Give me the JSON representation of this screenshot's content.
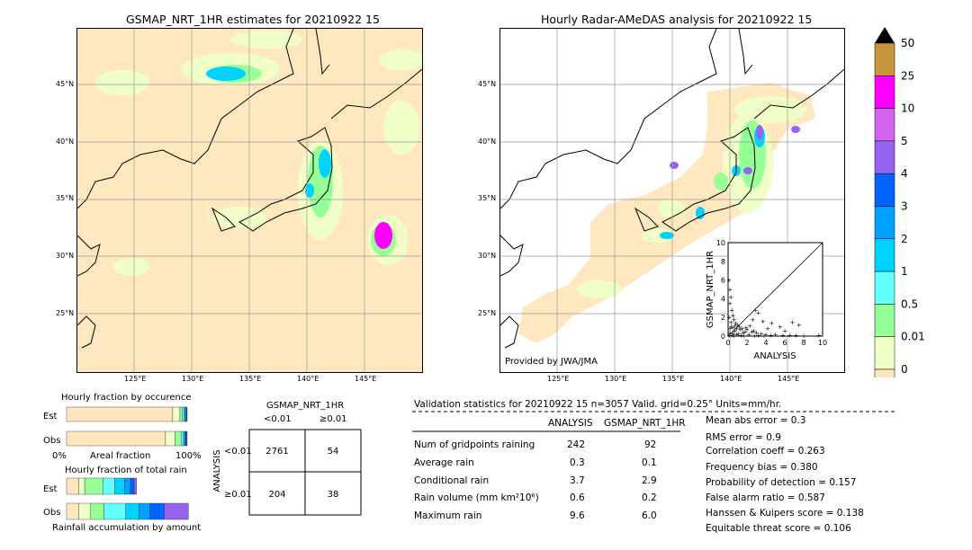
{
  "left_map": {
    "title": "GSMAP_NRT_1HR estimates for 20210922 15",
    "lat_ticks": [
      "45°N",
      "40°N",
      "35°N",
      "30°N",
      "25°N"
    ],
    "lon_ticks": [
      "125°E",
      "130°E",
      "135°E",
      "140°E",
      "145°E"
    ]
  },
  "right_map": {
    "title": "Hourly Radar-AMeDAS analysis for 20210922 15",
    "lat_ticks": [
      "45°N",
      "40°N",
      "35°N",
      "30°N",
      "25°N"
    ],
    "lon_ticks": [
      "125°E",
      "130°E",
      "135°E",
      "140°E",
      "145°E"
    ],
    "credit": "Provided by JWA/JMA"
  },
  "colorbar": {
    "labels": [
      "50",
      "25",
      "10",
      "5",
      "4",
      "3",
      "2",
      "1",
      "0.5",
      "0.01",
      "0"
    ],
    "colors": [
      "#c8963c",
      "#ff00ff",
      "#d264f0",
      "#9664f0",
      "#0064ff",
      "#00a0ff",
      "#00d2ff",
      "#64ffff",
      "#96ff96",
      "#f0ffc8",
      "#ffe6be"
    ]
  },
  "chart_data": [
    {
      "type": "scatter",
      "title": "",
      "xlabel": "ANALYSIS",
      "ylabel": "GSMAP_NRT_1HR",
      "xlim": [
        0,
        10
      ],
      "ylim": [
        0,
        10
      ],
      "x_ticks": [
        "0",
        "2",
        "4",
        "6",
        "8",
        "10"
      ],
      "y_ticks": [
        "0",
        "2",
        "4",
        "6",
        "8",
        "10"
      ],
      "points": [
        [
          0.1,
          6.0
        ],
        [
          0.2,
          5.0
        ],
        [
          0.3,
          4.2
        ],
        [
          0.2,
          3.5
        ],
        [
          0.4,
          2.8
        ],
        [
          0.5,
          2.2
        ],
        [
          0.1,
          2.0
        ],
        [
          0.6,
          1.8
        ],
        [
          0.3,
          1.5
        ],
        [
          0.8,
          1.4
        ],
        [
          1.0,
          1.2
        ],
        [
          1.2,
          1.0
        ],
        [
          0.5,
          0.9
        ],
        [
          1.5,
          0.8
        ],
        [
          2.0,
          0.7
        ],
        [
          0.7,
          0.6
        ],
        [
          1.8,
          0.5
        ],
        [
          2.5,
          0.5
        ],
        [
          3.0,
          0.4
        ],
        [
          0.2,
          0.4
        ],
        [
          1.1,
          0.3
        ],
        [
          3.5,
          0.3
        ],
        [
          4.0,
          0.2
        ],
        [
          0.9,
          0.2
        ],
        [
          2.2,
          0.2
        ],
        [
          5.0,
          0.2
        ],
        [
          5.8,
          0.1
        ],
        [
          1.4,
          0.1
        ],
        [
          3.2,
          0.1
        ],
        [
          0.4,
          0.1
        ],
        [
          6.5,
          0.1
        ],
        [
          7.2,
          0.1
        ],
        [
          2.8,
          0.05
        ],
        [
          0.6,
          0.05
        ],
        [
          8.0,
          0.05
        ],
        [
          9.6,
          0.1
        ],
        [
          4.5,
          0.1
        ],
        [
          1.7,
          0.05
        ],
        [
          3.8,
          0.05
        ],
        [
          0.1,
          0.05
        ],
        [
          2.9,
          2.8
        ],
        [
          3.2,
          2.5
        ],
        [
          2.6,
          1.8
        ],
        [
          3.7,
          1.6
        ],
        [
          4.6,
          1.4
        ],
        [
          6.8,
          1.5
        ],
        [
          7.5,
          1.2
        ],
        [
          5.5,
          1.0
        ],
        [
          4.2,
          0.8
        ],
        [
          6.0,
          0.6
        ],
        [
          0.3,
          1.0
        ],
        [
          0.7,
          1.1
        ],
        [
          1.3,
          0.7
        ],
        [
          0.5,
          0.3
        ],
        [
          0.9,
          0.8
        ],
        [
          1.6,
          0.4
        ],
        [
          2.3,
          1.1
        ],
        [
          0.2,
          0.8
        ],
        [
          1.9,
          0.9
        ],
        [
          2.7,
          0.6
        ]
      ]
    },
    {
      "type": "bar",
      "title": "Hourly fraction by occurence",
      "categories": [
        "Est",
        "Obs"
      ],
      "xlabel": "Areal fraction",
      "x_ticks": [
        "0%",
        "100%"
      ],
      "xlim": [
        0,
        100
      ],
      "series": [
        {
          "values": [
            88,
            82
          ]
        },
        {
          "values": [
            6,
            8
          ]
        },
        {
          "values": [
            2,
            5
          ]
        },
        {
          "values": [
            1.5,
            2
          ]
        },
        {
          "values": [
            1,
            1
          ]
        },
        {
          "values": [
            0.8,
            0.8
          ]
        },
        {
          "values": [
            0.4,
            0.7
          ]
        },
        {
          "values": [
            0.3,
            0.5
          ]
        }
      ]
    },
    {
      "type": "bar",
      "title": "Hourly fraction of total rain",
      "categories": [
        "Est",
        "Obs"
      ],
      "xlabel": "Rainfall accumulation by amount",
      "xlim": [
        0,
        100
      ],
      "series": [
        {
          "values": [
            10,
            10
          ]
        },
        {
          "values": [
            5,
            10
          ]
        },
        {
          "values": [
            15,
            11
          ]
        },
        {
          "values": [
            10,
            18
          ]
        },
        {
          "values": [
            8,
            11
          ]
        },
        {
          "values": [
            5,
            9
          ]
        },
        {
          "values": [
            3,
            12
          ]
        },
        {
          "values": [
            2,
            20
          ]
        }
      ]
    },
    {
      "type": "table",
      "title": "GSMAP_NRT_1HR",
      "col_headers": [
        "<0.01",
        "≥0.01"
      ],
      "row_axis_label": "ANALYSIS",
      "row_headers": [
        "<0.01",
        "≥0.01"
      ],
      "cells": [
        [
          "2761",
          "54"
        ],
        [
          "204",
          "38"
        ]
      ]
    }
  ],
  "validation": {
    "header": "Validation statistics for 20210922 15  n=3057 Valid. grid=0.25° Units=mm/hr.",
    "col_analysis": "ANALYSIS",
    "col_gsmap": "GSMAP_NRT_1HR",
    "rows": [
      {
        "label": "Num of gridpoints raining",
        "analysis": "242",
        "gsmap": "92"
      },
      {
        "label": "Average rain",
        "analysis": "0.3",
        "gsmap": "0.1"
      },
      {
        "label": "Conditional rain",
        "analysis": "3.7",
        "gsmap": "2.9"
      },
      {
        "label": "Rain volume (mm km²10⁶)",
        "analysis": "0.6",
        "gsmap": "0.2"
      },
      {
        "label": "Maximum rain",
        "analysis": "9.6",
        "gsmap": "6.0"
      }
    ],
    "scores": [
      "Mean abs error =    0.3",
      "RMS error =    0.9",
      "Correlation coeff =  0.263",
      "Frequency bias =  0.380",
      "Probability of detection =  0.157",
      "False alarm ratio =  0.587",
      "Hanssen & Kuipers score =  0.138",
      "Equitable threat score =  0.106"
    ]
  }
}
